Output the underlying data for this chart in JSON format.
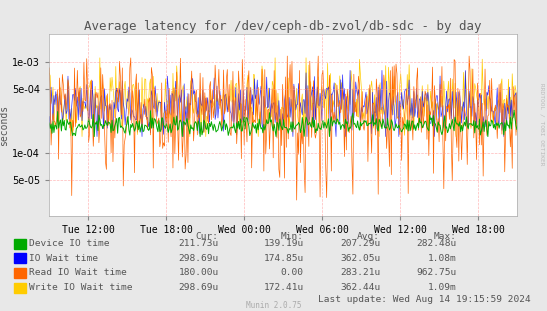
{
  "title": "Average latency for /dev/ceph-db-zvol/db-sdc - by day",
  "ylabel": "seconds",
  "bg_color": "#e8e8e8",
  "plot_bg_color": "#ffffff",
  "grid_color": "#ff9999",
  "watermark": "RRDTOOL / TOBI OETIKER",
  "munin_version": "Munin 2.0.75",
  "x_ticks": [
    "Tue 12:00",
    "Tue 18:00",
    "Wed 00:00",
    "Wed 06:00",
    "Wed 12:00",
    "Wed 18:00"
  ],
  "y_min": 2e-05,
  "y_max": 0.002,
  "yticks": [
    5e-05,
    0.0001,
    0.0005,
    0.001
  ],
  "ytick_labels": [
    "5e-05",
    "1e-04",
    "5e-04",
    "1e-03"
  ],
  "legend": [
    {
      "label": "Device IO time",
      "color": "#00aa00"
    },
    {
      "label": "IO Wait time",
      "color": "#0000ff"
    },
    {
      "label": "Read IO Wait time",
      "color": "#ff6600"
    },
    {
      "label": "Write IO Wait time",
      "color": "#ffcc00"
    }
  ],
  "stats_headers": [
    "Cur:",
    "Min:",
    "Avg:",
    "Max:"
  ],
  "stats": [
    [
      "211.73u",
      "139.19u",
      "207.29u",
      "282.48u"
    ],
    [
      "298.69u",
      "174.85u",
      "362.05u",
      "1.08m"
    ],
    [
      "180.00u",
      "0.00",
      "283.21u",
      "962.75u"
    ],
    [
      "298.69u",
      "172.41u",
      "362.44u",
      "1.09m"
    ]
  ],
  "last_update": "Last update: Wed Aug 14 19:15:59 2024",
  "n_points": 500,
  "seed": 12
}
